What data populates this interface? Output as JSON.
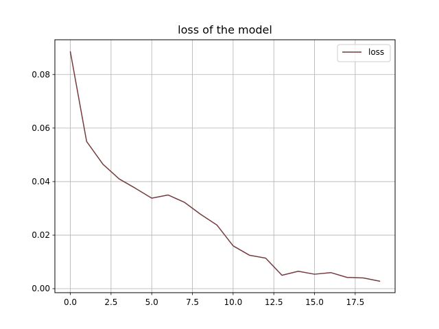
{
  "chart_data": {
    "type": "line",
    "title": "loss of the model",
    "xlabel": "",
    "ylabel": "",
    "grid": true,
    "legend_placement": "top-right",
    "xlim": [
      -0.95,
      19.95
    ],
    "ylim": [
      -0.0015,
      0.093
    ],
    "xticks": [
      0.0,
      2.5,
      5.0,
      7.5,
      10.0,
      12.5,
      15.0,
      17.5
    ],
    "xtick_labels": [
      "0.0",
      "2.5",
      "5.0",
      "7.5",
      "10.0",
      "12.5",
      "15.0",
      "17.5"
    ],
    "yticks": [
      0.0,
      0.02,
      0.04,
      0.06,
      0.08
    ],
    "ytick_labels": [
      "0.00",
      "0.02",
      "0.04",
      "0.06",
      "0.08"
    ],
    "x": [
      0,
      1,
      2,
      3,
      4,
      5,
      6,
      7,
      8,
      9,
      10,
      11,
      12,
      13,
      14,
      15,
      16,
      17,
      18,
      19
    ],
    "series": [
      {
        "name": "loss",
        "color": "#753a3d",
        "values": [
          0.0885,
          0.055,
          0.0465,
          0.041,
          0.0375,
          0.0338,
          0.035,
          0.0323,
          0.0278,
          0.0238,
          0.016,
          0.0125,
          0.0114,
          0.005,
          0.0065,
          0.0054,
          0.006,
          0.0042,
          0.004,
          0.0028
        ]
      }
    ]
  }
}
